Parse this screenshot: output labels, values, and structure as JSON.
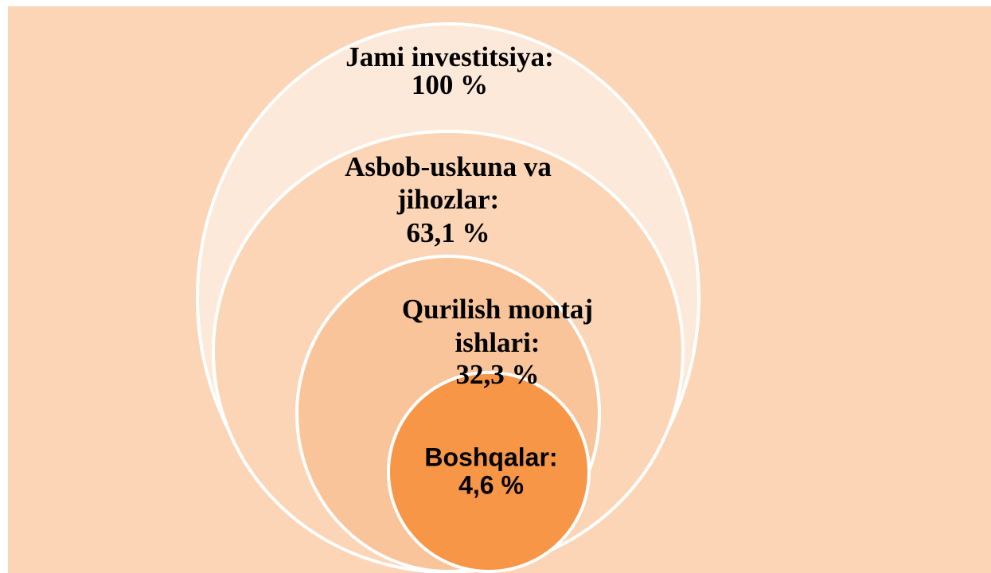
{
  "nodes": [
    {
      "lines": [
        "Jami investitsiya:",
        "100 %"
      ]
    },
    {
      "lines": [
        "Asbob-uskuna va",
        "jihozlar:",
        "63,1 %"
      ]
    },
    {
      "lines": [
        "Qurilish montaj",
        "ishlari:",
        "32,3 %"
      ]
    },
    {
      "lines": [
        "Boshqalar:",
        "4,6 %"
      ]
    }
  ]
}
